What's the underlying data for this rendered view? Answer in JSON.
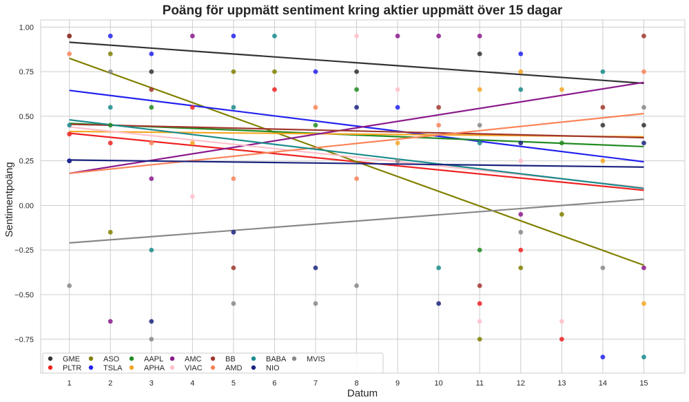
{
  "chart_data": {
    "type": "scatter",
    "title": "Poäng för uppmätt sentiment kring aktier uppmätt över 15 dagar",
    "xlabel": "Datum",
    "ylabel": "Sentimentpoäng",
    "xlim": [
      0.3,
      16.0
    ],
    "ylim": [
      -0.94,
      1.04
    ],
    "xticks": [
      1,
      2,
      3,
      4,
      5,
      6,
      7,
      8,
      9,
      10,
      11,
      12,
      13,
      14,
      15
    ],
    "yticks": [
      -0.75,
      -0.5,
      -0.25,
      0.0,
      0.25,
      0.5,
      0.75,
      1.0
    ],
    "ytick_labels": [
      "−0.75",
      "−0.50",
      "−0.25",
      "0.00",
      "0.25",
      "0.50",
      "0.75",
      "1.00"
    ],
    "grid": true,
    "legend_position": "bottom-left",
    "legend_columns": 7,
    "series": [
      {
        "name": "GME",
        "color": "#333333",
        "points": [
          [
            1,
            0.95
          ],
          [
            3,
            0.75
          ],
          [
            8,
            0.75
          ],
          [
            11,
            0.85
          ],
          [
            14,
            0.45
          ],
          [
            15,
            0.45
          ]
        ],
        "trend": [
          0.915,
          0.685
        ]
      },
      {
        "name": "PLTR",
        "color": "#ee2222",
        "points": [
          [
            1,
            0.4
          ],
          [
            2,
            0.35
          ],
          [
            4,
            0.55
          ],
          [
            6,
            0.65
          ],
          [
            11,
            -0.55
          ],
          [
            12,
            -0.25
          ],
          [
            13,
            -0.75
          ]
        ],
        "trend": [
          0.405,
          0.085
        ]
      },
      {
        "name": "ASO",
        "color": "#808000",
        "points": [
          [
            2,
            0.85
          ],
          [
            2,
            -0.15
          ],
          [
            5,
            0.75
          ],
          [
            6,
            0.75
          ],
          [
            11,
            -0.75
          ],
          [
            12,
            -0.35
          ],
          [
            13,
            -0.05
          ]
        ],
        "trend": [
          0.825,
          -0.335
        ]
      },
      {
        "name": "TSLA",
        "color": "#2222ee",
        "points": [
          [
            1,
            0.25
          ],
          [
            2,
            0.95
          ],
          [
            3,
            0.85
          ],
          [
            5,
            0.95
          ],
          [
            7,
            0.75
          ],
          [
            9,
            0.55
          ],
          [
            12,
            0.85
          ],
          [
            14,
            -0.85
          ]
        ],
        "trend": [
          0.645,
          0.245
        ]
      },
      {
        "name": "AAPL",
        "color": "#228b22",
        "points": [
          [
            2,
            0.45
          ],
          [
            3,
            0.55
          ],
          [
            7,
            0.45
          ],
          [
            8,
            0.65
          ],
          [
            11,
            -0.25
          ],
          [
            13,
            0.35
          ]
        ],
        "trend": [
          0.46,
          0.33
        ]
      },
      {
        "name": "APHA",
        "color": "#f5a623",
        "points": [
          [
            4,
            0.35
          ],
          [
            9,
            0.35
          ],
          [
            11,
            0.65
          ],
          [
            12,
            0.75
          ],
          [
            13,
            0.65
          ],
          [
            14,
            0.25
          ],
          [
            15,
            -0.55
          ]
        ],
        "trend": [
          0.415,
          0.385
        ]
      },
      {
        "name": "AMC",
        "color": "#8b1a8b",
        "points": [
          [
            2,
            -0.65
          ],
          [
            3,
            0.15
          ],
          [
            4,
            0.95
          ],
          [
            9,
            0.95
          ],
          [
            10,
            0.95
          ],
          [
            11,
            0.95
          ],
          [
            12,
            -0.05
          ],
          [
            15,
            -0.35
          ]
        ],
        "trend": [
          0.18,
          0.69
        ]
      },
      {
        "name": "VIAC",
        "color": "#ffc0cb",
        "points": [
          [
            4,
            0.05
          ],
          [
            8,
            0.95
          ],
          [
            9,
            0.65
          ],
          [
            11,
            -0.65
          ],
          [
            12,
            0.25
          ],
          [
            13,
            -0.65
          ]
        ],
        "trend": [
          0.44,
          0.1
        ]
      },
      {
        "name": "BB",
        "color": "#a0372e",
        "points": [
          [
            1,
            0.95
          ],
          [
            3,
            0.65
          ],
          [
            5,
            -0.35
          ],
          [
            10,
            0.55
          ],
          [
            11,
            -0.45
          ],
          [
            14,
            0.55
          ],
          [
            15,
            0.95
          ]
        ],
        "trend": [
          0.455,
          0.38
        ]
      },
      {
        "name": "AMD",
        "color": "#fa8459",
        "points": [
          [
            1,
            0.85
          ],
          [
            3,
            0.35
          ],
          [
            5,
            0.15
          ],
          [
            7,
            0.55
          ],
          [
            8,
            0.15
          ],
          [
            10,
            0.45
          ],
          [
            15,
            0.75
          ]
        ],
        "trend": [
          0.18,
          0.515
        ]
      },
      {
        "name": "BABA",
        "color": "#1a8b8b",
        "points": [
          [
            1,
            0.45
          ],
          [
            2,
            0.55
          ],
          [
            3,
            -0.25
          ],
          [
            5,
            0.55
          ],
          [
            6,
            0.95
          ],
          [
            10,
            -0.35
          ],
          [
            11,
            0.35
          ],
          [
            12,
            0.65
          ],
          [
            14,
            0.75
          ],
          [
            15,
            -0.85
          ]
        ],
        "trend": [
          0.48,
          0.095
        ]
      },
      {
        "name": "NIO",
        "color": "#1a237e",
        "points": [
          [
            1,
            0.25
          ],
          [
            3,
            -0.65
          ],
          [
            5,
            -0.15
          ],
          [
            7,
            -0.35
          ],
          [
            8,
            0.55
          ],
          [
            10,
            -0.55
          ],
          [
            12,
            0.35
          ],
          [
            15,
            0.35
          ]
        ],
        "trend": [
          0.255,
          0.215
        ]
      },
      {
        "name": "MVIS",
        "color": "#888888",
        "points": [
          [
            1,
            -0.45
          ],
          [
            2,
            0.75
          ],
          [
            3,
            -0.75
          ],
          [
            5,
            -0.55
          ],
          [
            7,
            -0.55
          ],
          [
            8,
            -0.45
          ],
          [
            9,
            0.25
          ],
          [
            11,
            0.45
          ],
          [
            12,
            -0.15
          ],
          [
            14,
            -0.35
          ],
          [
            15,
            0.55
          ]
        ],
        "trend": [
          -0.21,
          0.035
        ]
      }
    ]
  }
}
